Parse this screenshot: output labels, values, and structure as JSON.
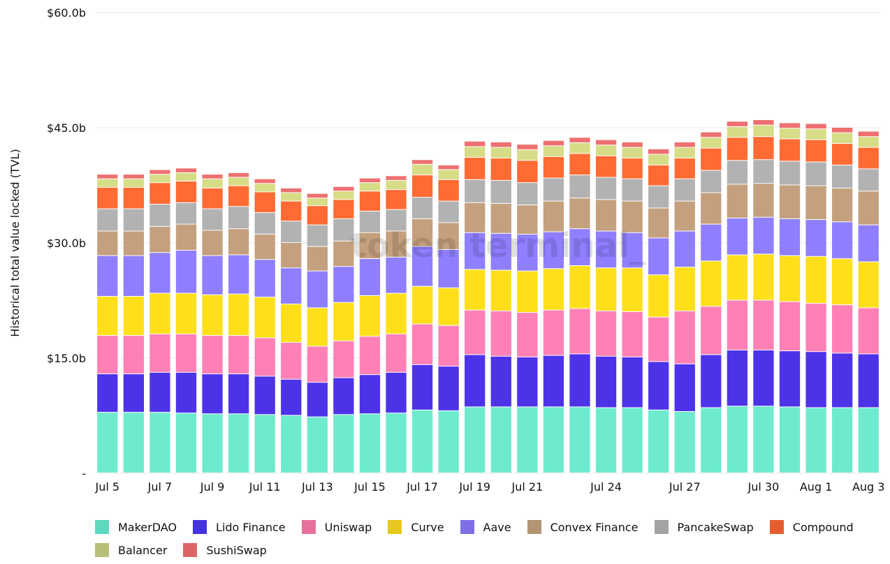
{
  "chart_data": {
    "type": "bar",
    "stacked": true,
    "title": "",
    "xlabel": "",
    "ylabel": "Historical total value locked (TVL)",
    "ylim": [
      0,
      60
    ],
    "yticks": [
      0,
      15,
      30,
      45,
      60
    ],
    "ytick_labels": [
      "-",
      "$15.0b",
      "$30.0b",
      "$45.0b",
      "$60.0b"
    ],
    "grid": true,
    "legend_position": "bottom",
    "watermark": "token terminal_",
    "categories": [
      "Jul 5",
      "Jul 6",
      "Jul 7",
      "Jul 8",
      "Jul 9",
      "Jul 10",
      "Jul 11",
      "Jul 12",
      "Jul 13",
      "Jul 14",
      "Jul 15",
      "Jul 16",
      "Jul 17",
      "Jul 18",
      "Jul 19",
      "Jul 20",
      "Jul 21",
      "Jul 22",
      "Jul 23",
      "Jul 24",
      "Jul 25",
      "Jul 26",
      "Jul 27",
      "Jul 28",
      "Jul 29",
      "Jul 30",
      "Jul 31",
      "Aug 1",
      "Aug 2",
      "Aug 3"
    ],
    "xtick_labels": [
      {
        "index": 0,
        "label": "Jul 5"
      },
      {
        "index": 2,
        "label": "Jul 7"
      },
      {
        "index": 4,
        "label": "Jul 9"
      },
      {
        "index": 6,
        "label": "Jul 11"
      },
      {
        "index": 8,
        "label": "Jul 13"
      },
      {
        "index": 10,
        "label": "Jul 15"
      },
      {
        "index": 12,
        "label": "Jul 17"
      },
      {
        "index": 14,
        "label": "Jul 19"
      },
      {
        "index": 16,
        "label": "Jul 21"
      },
      {
        "index": 19,
        "label": "Jul 24"
      },
      {
        "index": 22,
        "label": "Jul 27"
      },
      {
        "index": 25,
        "label": "Jul 30"
      },
      {
        "index": 27,
        "label": "Aug 1"
      },
      {
        "index": 29,
        "label": "Aug 3"
      }
    ],
    "series": [
      {
        "name": "MakerDAO",
        "color": "#6EEBCF",
        "values": [
          7.9,
          7.9,
          7.9,
          7.8,
          7.7,
          7.7,
          7.6,
          7.5,
          7.3,
          7.6,
          7.7,
          7.8,
          8.2,
          8.1,
          8.6,
          8.6,
          8.6,
          8.6,
          8.6,
          8.5,
          8.5,
          8.2,
          8.0,
          8.5,
          8.7,
          8.7,
          8.6,
          8.5,
          8.5,
          8.5
        ]
      },
      {
        "name": "Lido Finance",
        "color": "#4D33E8",
        "values": [
          5.0,
          5.0,
          5.2,
          5.3,
          5.2,
          5.2,
          5.0,
          4.7,
          4.5,
          4.8,
          5.1,
          5.3,
          5.9,
          5.8,
          6.8,
          6.6,
          6.5,
          6.7,
          6.9,
          6.7,
          6.6,
          6.3,
          6.2,
          6.9,
          7.3,
          7.3,
          7.3,
          7.3,
          7.1,
          7.0
        ]
      },
      {
        "name": "Uniswap",
        "color": "#FF80B6",
        "values": [
          5.0,
          5.0,
          5.0,
          5.0,
          5.0,
          5.0,
          5.0,
          4.8,
          4.7,
          4.8,
          5.0,
          5.0,
          5.3,
          5.3,
          5.8,
          5.9,
          5.8,
          5.9,
          5.9,
          5.9,
          5.9,
          5.8,
          6.9,
          6.3,
          6.5,
          6.5,
          6.4,
          6.3,
          6.3,
          6.0
        ]
      },
      {
        "name": "Curve",
        "color": "#FFDF1A",
        "values": [
          5.1,
          5.1,
          5.3,
          5.3,
          5.3,
          5.4,
          5.3,
          5.0,
          5.0,
          5.0,
          5.3,
          5.3,
          4.9,
          4.9,
          5.3,
          5.3,
          5.4,
          5.4,
          5.6,
          5.6,
          5.7,
          5.5,
          5.7,
          5.9,
          5.9,
          6.0,
          6.0,
          6.1,
          6.0,
          6.0
        ]
      },
      {
        "name": "Aave",
        "color": "#8F7FFF",
        "values": [
          5.3,
          5.3,
          5.3,
          5.6,
          5.1,
          5.1,
          4.9,
          4.7,
          4.8,
          4.7,
          4.8,
          4.7,
          5.2,
          5.0,
          4.8,
          4.8,
          4.8,
          4.8,
          4.8,
          4.8,
          4.6,
          4.8,
          4.7,
          4.8,
          4.8,
          4.8,
          4.8,
          4.8,
          4.8,
          4.8
        ]
      },
      {
        "name": "Convex Finance",
        "color": "#C4A07E",
        "values": [
          3.2,
          3.2,
          3.4,
          3.4,
          3.3,
          3.4,
          3.3,
          3.3,
          3.2,
          3.3,
          3.4,
          3.4,
          3.6,
          3.5,
          3.9,
          3.9,
          3.8,
          4.0,
          4.0,
          4.1,
          4.1,
          3.9,
          3.9,
          4.1,
          4.4,
          4.4,
          4.4,
          4.4,
          4.4,
          4.4
        ]
      },
      {
        "name": "PancakeSwap",
        "color": "#B2B2B2",
        "values": [
          2.9,
          2.9,
          2.9,
          2.8,
          2.8,
          2.9,
          2.8,
          2.8,
          2.8,
          2.9,
          2.8,
          2.8,
          2.8,
          2.8,
          3.0,
          3.0,
          2.9,
          3.0,
          3.0,
          2.9,
          2.9,
          2.9,
          2.9,
          2.9,
          3.1,
          3.1,
          3.1,
          3.1,
          3.0,
          2.9
        ]
      },
      {
        "name": "Compound",
        "color": "#FF6B33",
        "values": [
          2.8,
          2.8,
          2.8,
          2.8,
          2.7,
          2.7,
          2.7,
          2.6,
          2.5,
          2.5,
          2.6,
          2.6,
          2.9,
          2.8,
          2.9,
          2.9,
          2.9,
          2.8,
          2.8,
          2.8,
          2.7,
          2.7,
          2.7,
          2.9,
          3.0,
          3.0,
          2.9,
          2.9,
          2.8,
          2.8
        ]
      },
      {
        "name": "Balancer",
        "color": "#D7DC86",
        "values": [
          1.1,
          1.1,
          1.1,
          1.1,
          1.2,
          1.1,
          1.1,
          1.1,
          1.0,
          1.1,
          1.1,
          1.2,
          1.4,
          1.3,
          1.4,
          1.4,
          1.4,
          1.4,
          1.4,
          1.4,
          1.4,
          1.4,
          1.4,
          1.4,
          1.4,
          1.5,
          1.4,
          1.4,
          1.4,
          1.4
        ]
      },
      {
        "name": "SushiSwap",
        "color": "#EE7070",
        "values": [
          0.6,
          0.6,
          0.6,
          0.6,
          0.6,
          0.6,
          0.6,
          0.6,
          0.6,
          0.6,
          0.6,
          0.6,
          0.6,
          0.6,
          0.7,
          0.7,
          0.7,
          0.7,
          0.7,
          0.7,
          0.7,
          0.7,
          0.7,
          0.7,
          0.7,
          0.7,
          0.7,
          0.7,
          0.7,
          0.7
        ]
      }
    ]
  },
  "legend": {
    "items": [
      {
        "label": "MakerDAO",
        "color": "#5DD9BE"
      },
      {
        "label": "Lido Finance",
        "color": "#4433E0"
      },
      {
        "label": "Uniswap",
        "color": "#E8709D"
      },
      {
        "label": "Curve",
        "color": "#E6C81E"
      },
      {
        "label": "Aave",
        "color": "#7D70E6"
      },
      {
        "label": "Convex Finance",
        "color": "#B39473"
      },
      {
        "label": "PancakeSwap",
        "color": "#A3A3A3"
      },
      {
        "label": "Compound",
        "color": "#E65C2E"
      },
      {
        "label": "Balancer",
        "color": "#B8C078"
      },
      {
        "label": "SushiSwap",
        "color": "#DC6666"
      }
    ]
  }
}
